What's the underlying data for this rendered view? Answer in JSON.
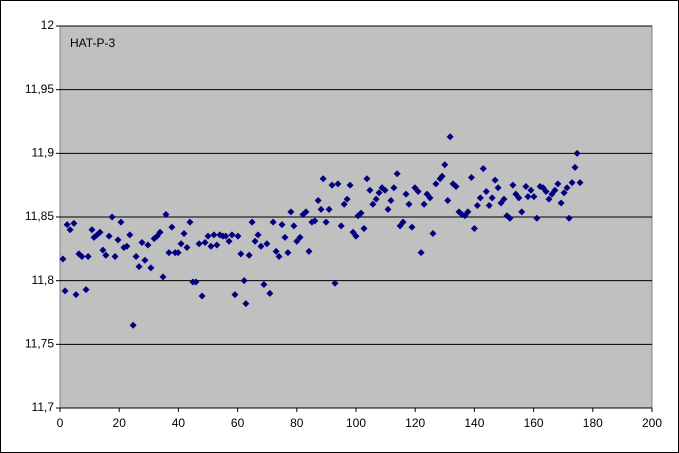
{
  "chart_data": {
    "type": "scatter",
    "title": "HAT-P-3",
    "xlim": [
      0,
      200
    ],
    "xticks": [
      0,
      20,
      40,
      60,
      80,
      100,
      120,
      140,
      160,
      180,
      200
    ],
    "ylim": [
      11.7,
      12
    ],
    "yticks": [
      {
        "value": 11.7,
        "label": "11,7"
      },
      {
        "value": 11.75,
        "label": "11,75"
      },
      {
        "value": 11.8,
        "label": "11,8"
      },
      {
        "value": 11.85,
        "label": "11,85"
      },
      {
        "value": 11.9,
        "label": "11,9"
      },
      {
        "value": 11.95,
        "label": "11,95"
      },
      12
    ],
    "grid": true,
    "series": [
      {
        "color": "#000080",
        "x": [
          1,
          1.7,
          2.4,
          3.4,
          4.7,
          5.4,
          6.4,
          7.4,
          8.8,
          9.5,
          10.8,
          11.5,
          12.5,
          13.5,
          14.5,
          15.5,
          16.6,
          17.6,
          18.6,
          19.6,
          20.6,
          21.6,
          22.6,
          23.6,
          24.7,
          25.7,
          26.7,
          27.7,
          28.7,
          29.7,
          30.7,
          31.8,
          32.8,
          33.8,
          34.8,
          35.8,
          36.8,
          37.8,
          38.9,
          39.9,
          40.9,
          41.9,
          42.9,
          43.9,
          44.9,
          45.9,
          47,
          48,
          49,
          50,
          51,
          52,
          53,
          54,
          55,
          56,
          57.1,
          58.1,
          59.1,
          60.1,
          61.1,
          62.2,
          62.8,
          63.9,
          64.9,
          65.9,
          66.9,
          67.9,
          68.9,
          69.9,
          70.9,
          72,
          73,
          74,
          75,
          76,
          77,
          78,
          79,
          80,
          81.1,
          82.1,
          83.1,
          84.1,
          85.1,
          86.1,
          87.2,
          88.2,
          88.9,
          89.9,
          90.9,
          91.9,
          92.9,
          93.9,
          95,
          96,
          97,
          98,
          99,
          100,
          100.7,
          101.7,
          102.7,
          103.7,
          104.7,
          105.7,
          106.8,
          107.8,
          108.8,
          109.8,
          110.8,
          111.8,
          112.8,
          113.9,
          114.9,
          115.9,
          116.9,
          117.9,
          118.9,
          119.9,
          121,
          122,
          123,
          124,
          125,
          126,
          127,
          128.4,
          129.1,
          130,
          131,
          131.8,
          132.8,
          133.8,
          134.8,
          135.8,
          136.8,
          137.8,
          139,
          140,
          141,
          142,
          143,
          144,
          145,
          146,
          147,
          148,
          149,
          150,
          151,
          152,
          153,
          154,
          155,
          156,
          157.4,
          158.1,
          159.1,
          160.1,
          161.1,
          162.2,
          163.2,
          164.2,
          165.2,
          166.2,
          167.2,
          168.2,
          169.3,
          170.3,
          171.3,
          172,
          173,
          174,
          174.7,
          175.7
        ],
        "values": [
          11.817,
          11.792,
          11.844,
          11.84,
          11.845,
          11.789,
          11.821,
          11.819,
          11.793,
          11.819,
          11.84,
          11.834,
          11.836,
          11.838,
          11.824,
          11.82,
          11.835,
          11.85,
          11.819,
          11.832,
          11.846,
          11.826,
          11.827,
          11.836,
          11.765,
          11.819,
          11.811,
          11.83,
          11.816,
          11.828,
          11.81,
          11.833,
          11.835,
          11.838,
          11.803,
          11.852,
          11.822,
          11.842,
          11.822,
          11.822,
          11.829,
          11.837,
          11.826,
          11.846,
          11.799,
          11.799,
          11.829,
          11.788,
          11.83,
          11.835,
          11.827,
          11.836,
          11.828,
          11.836,
          11.835,
          11.835,
          11.831,
          11.836,
          11.789,
          11.835,
          11.821,
          11.8,
          11.782,
          11.82,
          11.846,
          11.831,
          11.836,
          11.827,
          11.797,
          11.829,
          11.79,
          11.846,
          11.823,
          11.819,
          11.844,
          11.834,
          11.822,
          11.854,
          11.843,
          11.831,
          11.834,
          11.852,
          11.854,
          11.823,
          11.846,
          11.847,
          11.863,
          11.856,
          11.88,
          11.846,
          11.856,
          11.875,
          11.798,
          11.876,
          11.843,
          11.86,
          11.864,
          11.875,
          11.838,
          11.835,
          11.851,
          11.853,
          11.841,
          11.88,
          11.871,
          11.86,
          11.864,
          11.869,
          11.873,
          11.871,
          11.856,
          11.863,
          11.873,
          11.884,
          11.843,
          11.846,
          11.868,
          11.86,
          11.842,
          11.873,
          11.87,
          11.822,
          11.86,
          11.868,
          11.865,
          11.837,
          11.876,
          11.88,
          11.882,
          11.891,
          11.863,
          11.913,
          11.876,
          11.874,
          11.854,
          11.852,
          11.851,
          11.854,
          11.881,
          11.841,
          11.859,
          11.865,
          11.888,
          11.87,
          11.859,
          11.865,
          11.879,
          11.873,
          11.861,
          11.864,
          11.851,
          11.849,
          11.875,
          11.868,
          11.865,
          11.854,
          11.874,
          11.866,
          11.871,
          11.866,
          11.849,
          11.874,
          11.873,
          11.87,
          11.864,
          11.868,
          11.871,
          11.876,
          11.861,
          11.869,
          11.873,
          11.849,
          11.877,
          11.889,
          11.9,
          11.877
        ]
      }
    ]
  }
}
